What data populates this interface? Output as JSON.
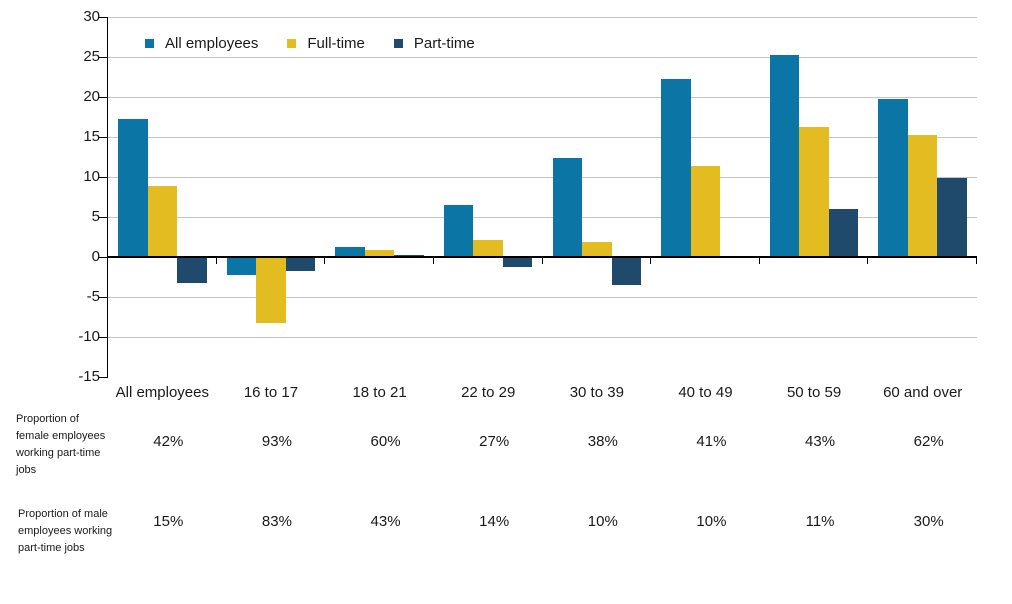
{
  "chart_data": {
    "type": "bar",
    "title": "",
    "xlabel": "",
    "ylabel": "",
    "categories": [
      "All employees",
      "16 to 17",
      "18 to 21",
      "22 to 29",
      "30 to 39",
      "40 to 49",
      "50 to 59",
      "60 and over"
    ],
    "series": [
      {
        "name": "All employees",
        "color": "#0B76A5",
        "values": [
          17.3,
          -2.3,
          1.2,
          6.5,
          12.4,
          22.3,
          25.2,
          19.8
        ]
      },
      {
        "name": "Full-time",
        "color": "#E3BC22",
        "values": [
          8.9,
          -8.3,
          0.9,
          2.1,
          1.9,
          11.4,
          16.2,
          15.3
        ]
      },
      {
        "name": "Part-time",
        "color": "#1F4A6B",
        "values": [
          -3.2,
          -1.7,
          0.3,
          -1.2,
          -3.5,
          0,
          6.0,
          9.9
        ]
      }
    ],
    "ylim": [
      -15,
      30
    ],
    "yticks": [
      30,
      25,
      20,
      15,
      10,
      5,
      0,
      -5,
      -10,
      -15
    ],
    "grid": true,
    "legend_position": "top-left"
  },
  "table": {
    "rows": [
      {
        "label": "Proportion of female employees working part-time jobs",
        "values": [
          "42%",
          "93%",
          "60%",
          "27%",
          "38%",
          "41%",
          "43%",
          "62%"
        ]
      },
      {
        "label": "Proportion of male employees working part-time jobs",
        "values": [
          "15%",
          "83%",
          "43%",
          "14%",
          "10%",
          "10%",
          "11%",
          "30%"
        ]
      }
    ]
  },
  "colors": {
    "background": "#FFFFFF",
    "gridline": "#C6C6C6",
    "axis": "#000000",
    "text": "#1A1A1A"
  }
}
